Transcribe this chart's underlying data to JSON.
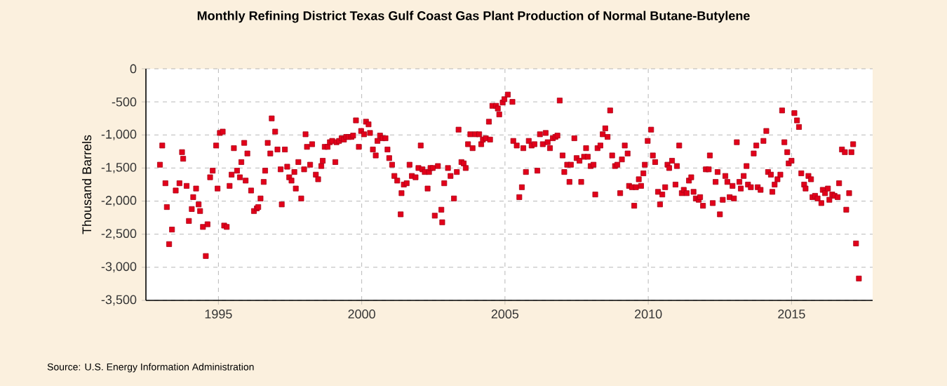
{
  "chart_data": {
    "type": "scatter",
    "title": "Monthly Refining District Texas Gulf Coast Gas Plant Production of Normal Butane-Butylene",
    "ylabel": "Thousand Barrels",
    "annotations": [
      "Source: U.S. Energy Information Administration"
    ],
    "marker": "square",
    "grid": true,
    "xlim": [
      1992.47,
      2017.83
    ],
    "xticks": [
      1995,
      2000,
      2005,
      2010,
      2015
    ],
    "ylim": [
      -3500,
      0
    ],
    "yticks": [
      {
        "value": -3500,
        "label": "-3,500"
      },
      {
        "value": -3000,
        "label": "-3,000"
      },
      {
        "value": -2500,
        "label": "-2,500"
      },
      {
        "value": -2000,
        "label": "-2,000"
      },
      {
        "value": -1500,
        "label": "-1,500"
      },
      {
        "value": -1000,
        "label": "-1,000"
      },
      {
        "value": -500,
        "label": "-500"
      },
      0
    ],
    "series": [
      {
        "color": "#e2001a",
        "x": [
          1992.96,
          1993.04,
          1993.15,
          1993.2,
          1993.28,
          1993.38,
          1993.51,
          1993.64,
          1993.73,
          1993.77,
          1993.89,
          1993.97,
          1994.07,
          1994.12,
          1994.22,
          1994.31,
          1994.36,
          1994.46,
          1994.56,
          1994.62,
          1994.71,
          1994.8,
          1994.92,
          1994.97,
          1995.05,
          1995.15,
          1995.2,
          1995.29,
          1995.39,
          1995.46,
          1995.54,
          1995.65,
          1995.75,
          1995.8,
          1995.9,
          1995.95,
          1996.01,
          1996.14,
          1996.24,
          1996.34,
          1996.39,
          1996.47,
          1996.58,
          1996.63,
          1996.72,
          1996.81,
          1996.86,
          1996.98,
          1997.06,
          1997.17,
          1997.21,
          1997.32,
          1997.4,
          1997.47,
          1997.55,
          1997.65,
          1997.7,
          1997.79,
          1997.89,
          1997.99,
          1998.04,
          1998.09,
          1998.2,
          1998.27,
          1998.4,
          1998.48,
          1998.59,
          1998.64,
          1998.71,
          1998.81,
          1998.89,
          1998.97,
          1999.08,
          1999.12,
          1999.21,
          1999.3,
          1999.38,
          1999.46,
          1999.54,
          1999.64,
          1999.7,
          1999.8,
          1999.9,
          1999.98,
          2000.08,
          2000.15,
          2000.24,
          2000.29,
          2000.39,
          2000.49,
          2000.55,
          2000.64,
          2000.73,
          2000.83,
          2000.9,
          2000.96,
          2001.06,
          2001.14,
          2001.24,
          2001.36,
          2001.39,
          2001.47,
          2001.57,
          2001.67,
          2001.75,
          2001.88,
          2001.98,
          2002.06,
          2002.12,
          2002.2,
          2002.3,
          2002.35,
          2002.4,
          2002.48,
          2002.55,
          2002.66,
          2002.78,
          2002.81,
          2002.88,
          2003.01,
          2003.1,
          2003.22,
          2003.32,
          2003.38,
          2003.48,
          2003.56,
          2003.63,
          2003.71,
          2003.79,
          2003.87,
          2003.97,
          2004.1,
          2004.17,
          2004.23,
          2004.33,
          2004.44,
          2004.48,
          2004.56,
          2004.69,
          2004.75,
          2004.8,
          2004.92,
          2004.98,
          2005.1,
          2005.26,
          2005.29,
          2005.41,
          2005.5,
          2005.59,
          2005.64,
          2005.73,
          2005.83,
          2005.93,
          2006.03,
          2006.13,
          2006.22,
          2006.32,
          2006.42,
          2006.49,
          2006.57,
          2006.67,
          2006.76,
          2006.83,
          2006.91,
          2007.01,
          2007.07,
          2007.17,
          2007.25,
          2007.3,
          2007.42,
          2007.5,
          2007.6,
          2007.66,
          2007.76,
          2007.83,
          2007.89,
          2007.99,
          2008.09,
          2008.15,
          2008.23,
          2008.33,
          2008.41,
          2008.5,
          2008.58,
          2008.67,
          2008.74,
          2008.84,
          2008.92,
          2009.02,
          2009.08,
          2009.18,
          2009.28,
          2009.33,
          2009.43,
          2009.51,
          2009.57,
          2009.67,
          2009.75,
          2009.83,
          2009.88,
          2009.98,
          2010.1,
          2010.16,
          2010.24,
          2010.34,
          2010.41,
          2010.49,
          2010.59,
          2010.67,
          2010.73,
          2010.83,
          2010.95,
          2011.0,
          2011.08,
          2011.17,
          2011.24,
          2011.34,
          2011.42,
          2011.5,
          2011.58,
          2011.66,
          2011.76,
          2011.81,
          2011.91,
          2012.01,
          2012.11,
          2012.15,
          2012.25,
          2012.35,
          2012.42,
          2012.5,
          2012.6,
          2012.69,
          2012.76,
          2012.84,
          2012.94,
          2012.99,
          2013.09,
          2013.18,
          2013.23,
          2013.33,
          2013.43,
          2013.48,
          2013.58,
          2013.68,
          2013.77,
          2013.82,
          2013.92,
          2014.02,
          2014.12,
          2014.18,
          2014.28,
          2014.33,
          2014.41,
          2014.51,
          2014.61,
          2014.67,
          2014.75,
          2014.85,
          2014.9,
          2015.0,
          2015.1,
          2015.19,
          2015.26,
          2015.34,
          2015.44,
          2015.49,
          2015.59,
          2015.68,
          2015.73,
          2015.82,
          2015.91,
          2016.04,
          2016.09,
          2016.17,
          2016.27,
          2016.32,
          2016.42,
          2016.5,
          2016.61,
          2016.66,
          2016.76,
          2016.86,
          2016.91,
          2017.01,
          2017.09,
          2017.15,
          2017.25,
          2017.35
        ],
        "values": [
          -1450,
          -1160,
          -1730,
          -2090,
          -2650,
          -2430,
          -1840,
          -1730,
          -1260,
          -1360,
          -1770,
          -2300,
          -2120,
          -1940,
          -1810,
          -2050,
          -2150,
          -2390,
          -2830,
          -2350,
          -1640,
          -1540,
          -1160,
          -1810,
          -970,
          -950,
          -2370,
          -2390,
          -1770,
          -1600,
          -1200,
          -1540,
          -1640,
          -1410,
          -1120,
          -1690,
          -1280,
          -1840,
          -2150,
          -2110,
          -2090,
          -1960,
          -1710,
          -1540,
          -1120,
          -1280,
          -750,
          -950,
          -1220,
          -1520,
          -2050,
          -1220,
          -1480,
          -1640,
          -1690,
          -1560,
          -1810,
          -1410,
          -1960,
          -1520,
          -990,
          -1180,
          -1450,
          -1140,
          -1600,
          -1670,
          -1470,
          -1390,
          -1180,
          -1180,
          -1110,
          -1090,
          -1410,
          -1110,
          -1090,
          -1050,
          -1070,
          -1030,
          -1030,
          -1030,
          -1010,
          -780,
          -1180,
          -940,
          -990,
          -800,
          -840,
          -970,
          -1220,
          -1310,
          -1090,
          -1010,
          -1050,
          -1050,
          -1220,
          -1350,
          -1450,
          -1620,
          -1690,
          -2200,
          -1880,
          -1750,
          -1730,
          -1450,
          -1620,
          -1640,
          -1500,
          -1160,
          -1520,
          -1560,
          -1810,
          -1560,
          -1500,
          -1500,
          -2220,
          -1470,
          -2130,
          -2320,
          -1730,
          -1500,
          -1620,
          -1960,
          -1560,
          -920,
          -1410,
          -1430,
          -1500,
          -1140,
          -990,
          -1200,
          -990,
          -990,
          -1140,
          -1070,
          -1050,
          -800,
          -1070,
          -560,
          -560,
          -600,
          -690,
          -510,
          -460,
          -390,
          -500,
          -1090,
          -1160,
          -1940,
          -1790,
          -1200,
          -1560,
          -1090,
          -1160,
          -1140,
          -1540,
          -990,
          -1140,
          -970,
          -1110,
          -1200,
          -1050,
          -1030,
          -1010,
          -480,
          -1310,
          -1560,
          -1450,
          -1710,
          -1450,
          -1050,
          -1350,
          -1390,
          -1710,
          -1330,
          -1200,
          -1330,
          -1470,
          -1450,
          -1900,
          -1200,
          -1160,
          -990,
          -900,
          -1030,
          -630,
          -1310,
          -1470,
          -1450,
          -1880,
          -1370,
          -1160,
          -1280,
          -1770,
          -1790,
          -2070,
          -1790,
          -1670,
          -1770,
          -1580,
          -1450,
          -1090,
          -920,
          -1310,
          -1410,
          -1860,
          -2050,
          -1900,
          -1790,
          -1450,
          -1500,
          -1390,
          -1750,
          -1470,
          -1160,
          -1880,
          -1830,
          -1880,
          -1690,
          -1640,
          -1860,
          -1960,
          -1980,
          -1940,
          -2070,
          -1520,
          -1520,
          -1310,
          -2030,
          -1710,
          -1560,
          -2200,
          -1980,
          -1620,
          -1710,
          -1940,
          -1770,
          -1960,
          -1110,
          -1710,
          -1810,
          -1620,
          -1470,
          -1750,
          -1790,
          -1280,
          -1160,
          -1790,
          -1830,
          -1090,
          -940,
          -1560,
          -1600,
          -1860,
          -1750,
          -1670,
          -1600,
          -630,
          -1110,
          -1260,
          -1430,
          -1390,
          -670,
          -780,
          -880,
          -1580,
          -1750,
          -1810,
          -1620,
          -1670,
          -1940,
          -1920,
          -1960,
          -2030,
          -1830,
          -1880,
          -1810,
          -1980,
          -1900,
          -1920,
          -1940,
          -1730,
          -1220,
          -1260,
          -2130,
          -1880,
          -1260,
          -1140,
          -2640,
          -3170
        ]
      }
    ]
  }
}
